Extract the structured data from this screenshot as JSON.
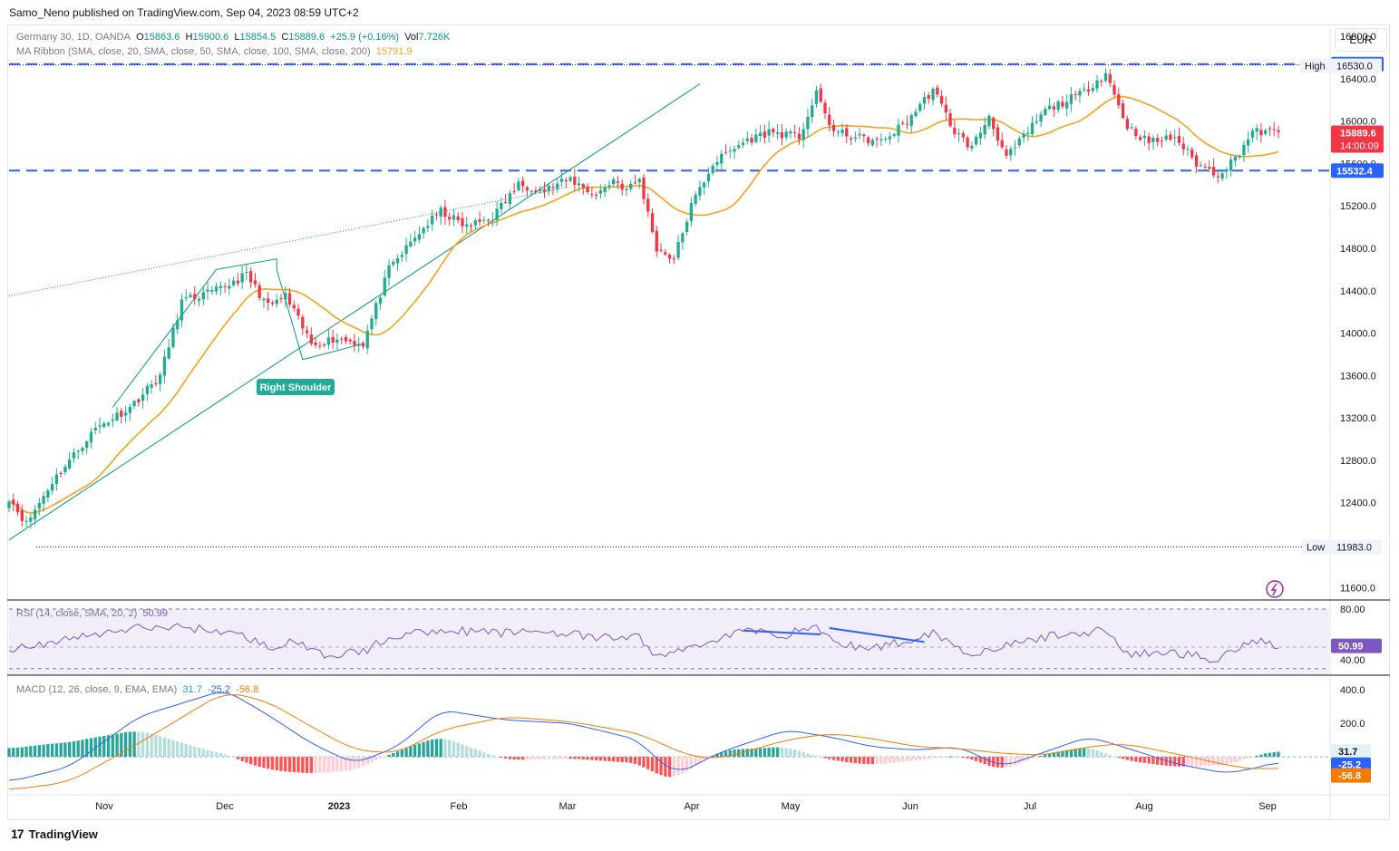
{
  "caption": "Samo_Neno published on TradingView.com, Sep 04, 2023 08:59 UTC+2",
  "currency_button": "EUR",
  "legend_main": {
    "symbol": "Germany 30, 1D, OANDA",
    "o_label": "O",
    "o": "15863.6",
    "h_label": "H",
    "h": "15900.6",
    "l_label": "L",
    "l": "15854.5",
    "c_label": "C",
    "c": "15889.6",
    "change": "+25.9 (+0.16%)",
    "vol_label": "Vol",
    "vol": "7.726K"
  },
  "legend_ma": {
    "name": "MA Ribbon (SMA, close, 20, SMA, close, 50, SMA, close, 100, SMA, close, 200)",
    "value": "15791.9"
  },
  "legend_rsi": {
    "name": "RSI (14, close, SMA, 20, 2)",
    "value": "50.99"
  },
  "legend_macd": {
    "name": "MACD (12, 26, close, 9, EMA, EMA)",
    "v1": "31.7",
    "v2": "-25.2",
    "v3": "-56.8"
  },
  "footer": {
    "brand": "TradingView"
  },
  "annotations": {
    "shoulder": "Right Shoulder"
  },
  "colors": {
    "up": "#22ab94",
    "down": "#f23645",
    "ma": "#f7a21b",
    "support": "#2962ff",
    "trend": "#089981",
    "rsi": "#7e57c2",
    "macd": "#2962ff",
    "signal": "#f57c00",
    "hist_up": "#26a69a",
    "hist_down": "#ff5252"
  },
  "chart_data": [
    {
      "type": "candlestick",
      "title": "Germany 30, 1D, OANDA",
      "y_range": [
        11500,
        16800
      ],
      "y_ticks": [
        "16800.0",
        "16400.0",
        "16000.0",
        "15600.0",
        "15200.0",
        "14800.0",
        "14400.0",
        "14000.0",
        "13600.0",
        "13200.0",
        "12800.0",
        "12400.0",
        "11600.0"
      ],
      "x_labels": [
        "Nov",
        "Dec",
        "2023",
        "Feb",
        "Mar",
        "Apr",
        "May",
        "Jun",
        "Jul",
        "Aug",
        "Sep"
      ],
      "last_close": "15889.6",
      "countdown": "14:00:09",
      "resistance": "16537.4",
      "support": "15532.4",
      "high_label": "High",
      "high": "16530.0",
      "low_label": "Low",
      "low": "11983.0",
      "sma20_last": "15791.9",
      "close_anchors": [
        [
          0,
          12450
        ],
        [
          4,
          12200
        ],
        [
          10,
          12600
        ],
        [
          20,
          13100
        ],
        [
          28,
          13300
        ],
        [
          35,
          13600
        ],
        [
          40,
          14300
        ],
        [
          48,
          14400
        ],
        [
          55,
          14550
        ],
        [
          60,
          14250
        ],
        [
          64,
          14350
        ],
        [
          70,
          13900
        ],
        [
          76,
          13950
        ],
        [
          82,
          13900
        ],
        [
          88,
          14600
        ],
        [
          95,
          14950
        ],
        [
          100,
          15150
        ],
        [
          106,
          15000
        ],
        [
          112,
          15100
        ],
        [
          118,
          15400
        ],
        [
          124,
          15350
        ],
        [
          130,
          15450
        ],
        [
          136,
          15300
        ],
        [
          140,
          15450
        ],
        [
          143,
          15350
        ],
        [
          146,
          15450
        ],
        [
          150,
          14800
        ],
        [
          154,
          14700
        ],
        [
          158,
          15200
        ],
        [
          163,
          15600
        ],
        [
          170,
          15800
        ],
        [
          176,
          15900
        ],
        [
          183,
          15850
        ],
        [
          187,
          16250
        ],
        [
          191,
          15900
        ],
        [
          196,
          15850
        ],
        [
          202,
          15800
        ],
        [
          208,
          16000
        ],
        [
          214,
          16300
        ],
        [
          219,
          15900
        ],
        [
          223,
          15750
        ],
        [
          227,
          16050
        ],
        [
          231,
          15650
        ],
        [
          235,
          15850
        ],
        [
          240,
          16100
        ],
        [
          248,
          16250
        ],
        [
          254,
          16450
        ],
        [
          259,
          15950
        ],
        [
          264,
          15800
        ],
        [
          270,
          15850
        ],
        [
          275,
          15600
        ],
        [
          280,
          15500
        ],
        [
          284,
          15650
        ],
        [
          288,
          15900
        ],
        [
          294,
          15890
        ]
      ]
    },
    {
      "type": "line",
      "title": "RSI (14, close, SMA, 20, 2)",
      "y_range": [
        30,
        85
      ],
      "y_ticks": [
        "80.00",
        "40.00"
      ],
      "last": "50.99",
      "anchors": [
        [
          0,
          48
        ],
        [
          10,
          54
        ],
        [
          20,
          60
        ],
        [
          30,
          65
        ],
        [
          40,
          66
        ],
        [
          50,
          62
        ],
        [
          55,
          58
        ],
        [
          60,
          50
        ],
        [
          66,
          54
        ],
        [
          72,
          44
        ],
        [
          82,
          46
        ],
        [
          88,
          58
        ],
        [
          100,
          64
        ],
        [
          112,
          61
        ],
        [
          124,
          63
        ],
        [
          136,
          57
        ],
        [
          146,
          58
        ],
        [
          150,
          42
        ],
        [
          158,
          50
        ],
        [
          170,
          63
        ],
        [
          180,
          60
        ],
        [
          187,
          67
        ],
        [
          191,
          53
        ],
        [
          200,
          49
        ],
        [
          208,
          55
        ],
        [
          214,
          62
        ],
        [
          222,
          45
        ],
        [
          230,
          50
        ],
        [
          240,
          58
        ],
        [
          248,
          61
        ],
        [
          254,
          64
        ],
        [
          259,
          44
        ],
        [
          270,
          46
        ],
        [
          280,
          40
        ],
        [
          288,
          57
        ],
        [
          294,
          51
        ]
      ]
    },
    {
      "type": "line",
      "title": "MACD (12, 26, close, 9, EMA, EMA)",
      "y_range": [
        -200,
        450
      ],
      "y_ticks": [
        "400.0",
        "200.0"
      ],
      "macd": "-25.2",
      "signal": "-56.8",
      "histogram": "31.7",
      "macd_anchors": [
        [
          0,
          -150
        ],
        [
          14,
          -60
        ],
        [
          30,
          240
        ],
        [
          50,
          400
        ],
        [
          60,
          250
        ],
        [
          70,
          80
        ],
        [
          80,
          -40
        ],
        [
          90,
          60
        ],
        [
          100,
          280
        ],
        [
          115,
          220
        ],
        [
          130,
          200
        ],
        [
          146,
          100
        ],
        [
          150,
          -20
        ],
        [
          155,
          -100
        ],
        [
          165,
          30
        ],
        [
          180,
          160
        ],
        [
          190,
          120
        ],
        [
          200,
          60
        ],
        [
          210,
          40
        ],
        [
          220,
          60
        ],
        [
          230,
          -60
        ],
        [
          240,
          30
        ],
        [
          250,
          120
        ],
        [
          258,
          60
        ],
        [
          270,
          -40
        ],
        [
          282,
          -100
        ],
        [
          290,
          -60
        ],
        [
          294,
          -25
        ]
      ],
      "signal_anchors": [
        [
          0,
          -200
        ],
        [
          14,
          -150
        ],
        [
          30,
          80
        ],
        [
          50,
          390
        ],
        [
          60,
          330
        ],
        [
          70,
          180
        ],
        [
          80,
          40
        ],
        [
          90,
          20
        ],
        [
          100,
          160
        ],
        [
          115,
          240
        ],
        [
          130,
          210
        ],
        [
          146,
          140
        ],
        [
          150,
          90
        ],
        [
          158,
          0
        ],
        [
          165,
          -10
        ],
        [
          180,
          100
        ],
        [
          190,
          140
        ],
        [
          200,
          110
        ],
        [
          210,
          60
        ],
        [
          220,
          50
        ],
        [
          230,
          20
        ],
        [
          240,
          10
        ],
        [
          250,
          60
        ],
        [
          258,
          80
        ],
        [
          270,
          20
        ],
        [
          282,
          -50
        ],
        [
          290,
          -80
        ],
        [
          294,
          -57
        ]
      ]
    }
  ]
}
